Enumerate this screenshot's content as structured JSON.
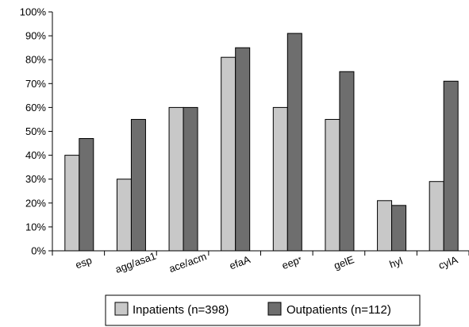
{
  "chart_data": {
    "type": "bar",
    "title": "",
    "xlabel": "",
    "ylabel": "",
    "ylim": [
      0,
      100
    ],
    "y_ticks": [
      "0%",
      "10%",
      "20%",
      "30%",
      "40%",
      "50%",
      "60%",
      "70%",
      "80%",
      "90%",
      "100%"
    ],
    "grid": false,
    "legend_placement": "bottom-center",
    "categories": [
      "esp",
      "agg/asa1",
      "ace/acm",
      "efaA",
      "eep",
      "gelE",
      "hyl",
      "cylA"
    ],
    "category_suffixes": [
      "",
      "",
      "",
      "",
      "*",
      "",
      "",
      ""
    ],
    "series": [
      {
        "name": "Inpatients (n=398)",
        "color": "#c8c8c8",
        "values": [
          40,
          30,
          60,
          81,
          60,
          55,
          21,
          29
        ]
      },
      {
        "name": "Outpatients (n=112)",
        "color": "#6e6e6e",
        "values": [
          47,
          55,
          60,
          85,
          91,
          75,
          19,
          71
        ]
      }
    ]
  }
}
